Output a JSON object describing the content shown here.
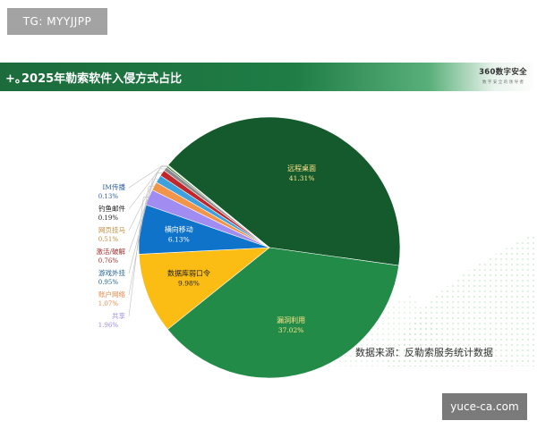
{
  "badge": {
    "text": "TG: MYYJJPP"
  },
  "header": {
    "plus": "+。",
    "title": "2025年勒索软件入侵方式占比"
  },
  "brand": {
    "name": "360数字安全",
    "tagline": "数 字 安 全 的 领 导 者"
  },
  "source_note": "数据来源：反勒索服务统计数据",
  "watermark": {
    "text": "yuce-ca.com"
  },
  "colors": {
    "header_green": "#1f7d45",
    "slice_remote": "#145a2c",
    "slice_vuln": "#238b48",
    "slice_db": "#fbbd14",
    "slice_lateral": "#0f73c9",
    "slice_share": "#a18cf2",
    "slice_account": "#f0954a",
    "slice_game": "#3fa1dc",
    "slice_crack": "#c1262b",
    "slice_web": "#8a8a8a",
    "slice_phish": "#2d6a3e",
    "slice_im": "#b6df86"
  },
  "chart_data": {
    "type": "pie",
    "title": "2025年勒索软件入侵方式占比",
    "slices": [
      {
        "label": "远程桌面",
        "value": 41.31,
        "display": "41.31%",
        "color": "#145a2c",
        "label_color": "#fde58a"
      },
      {
        "label": "漏洞利用",
        "value": 37.02,
        "display": "37.02%",
        "color": "#238b48",
        "label_color": "#fde58a"
      },
      {
        "label": "数据库弱口令",
        "value": 9.98,
        "display": "9.98%",
        "color": "#fbbd14",
        "label_color": "#1e1e1e"
      },
      {
        "label": "横向移动",
        "value": 6.13,
        "display": "6.13%",
        "color": "#0f73c9",
        "label_color": "#ffffff"
      },
      {
        "label": "共享",
        "value": 1.96,
        "display": "1.96%",
        "color": "#a18cf2",
        "label_color": "#9a8ae8"
      },
      {
        "label": "账户网络",
        "value": 1.07,
        "display": "1.07%",
        "color": "#f0954a",
        "label_color": "#e8894a"
      },
      {
        "label": "游戏外挂",
        "value": 0.95,
        "display": "0.95%",
        "color": "#3fa1dc",
        "label_color": "#1f5f90"
      },
      {
        "label": "激活/破解",
        "value": 0.76,
        "display": "0.76%",
        "color": "#c1262b",
        "label_color": "#a03030"
      },
      {
        "label": "网页挂马",
        "value": 0.51,
        "display": "0.51%",
        "color": "#8a8a8a",
        "label_color": "#c08a3a"
      },
      {
        "label": "钓鱼邮件",
        "value": 0.19,
        "display": "0.19%",
        "color": "#2d6a3e",
        "label_color": "#1a1a1a"
      },
      {
        "label": "IM传播",
        "value": 0.13,
        "display": "0.13%",
        "color": "#b6df86",
        "label_color": "#2f5f9f"
      }
    ]
  }
}
